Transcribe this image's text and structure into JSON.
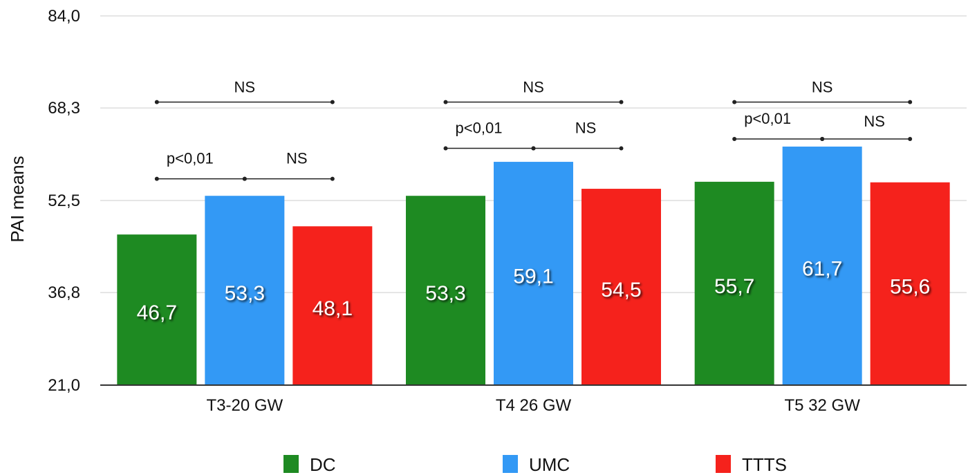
{
  "chart_data": {
    "type": "bar",
    "ylabel": "PAI means",
    "ylim": [
      21.0,
      84.0
    ],
    "yticks": [
      "21,0",
      "36,8",
      "52,5",
      "68,3",
      "84,0"
    ],
    "ytick_values": [
      21.0,
      36.8,
      52.5,
      68.3,
      84.0
    ],
    "grid": true,
    "legend_position": "bottom",
    "categories": [
      "T3-20 GW",
      "T4 26 GW",
      "T5 32 GW"
    ],
    "series": [
      {
        "name": "DC",
        "color": "#1e8a22",
        "values": [
          46.7,
          53.3,
          55.7
        ],
        "labels": [
          "46,7",
          "53,3",
          "55,7"
        ]
      },
      {
        "name": "UMC",
        "color": "#3399f5",
        "values": [
          53.3,
          59.1,
          61.7
        ],
        "labels": [
          "53,3",
          "59,1",
          "61,7"
        ]
      },
      {
        "name": "TTTS",
        "color": "#f5221c",
        "values": [
          48.1,
          54.5,
          55.6
        ],
        "labels": [
          "48,1",
          "54,5",
          "55,6"
        ]
      }
    ],
    "annotations": [
      {
        "category": 0,
        "from": 0,
        "to": 2,
        "label": "NS",
        "level": 69.3
      },
      {
        "category": 0,
        "from": 0,
        "to": 1,
        "label": "p<0,01",
        "level": 56.2
      },
      {
        "category": 0,
        "from": 1,
        "to": 2,
        "label": "NS",
        "level": 56.2
      },
      {
        "category": 1,
        "from": 0,
        "to": 2,
        "label": "NS",
        "level": 69.3
      },
      {
        "category": 1,
        "from": 0,
        "to": 1,
        "label": "p<0,01",
        "level": 61.4
      },
      {
        "category": 1,
        "from": 1,
        "to": 2,
        "label": "NS",
        "level": 61.4
      },
      {
        "category": 2,
        "from": 0,
        "to": 2,
        "label": "NS",
        "level": 69.3
      },
      {
        "category": 2,
        "from": 0,
        "to": 1,
        "label": "p<0,01",
        "level": 63.0
      },
      {
        "category": 2,
        "from": 1,
        "to": 2,
        "label": "NS",
        "level": 63.0
      }
    ]
  }
}
